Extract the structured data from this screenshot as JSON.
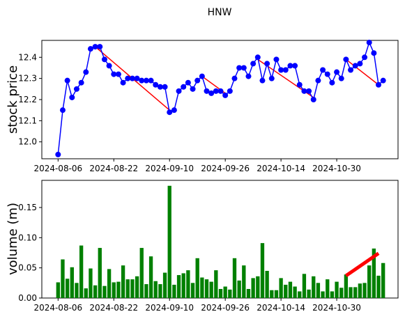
{
  "chart_data": [
    {
      "type": "line",
      "title": "HNW",
      "ylabel": "stock price",
      "ylabel_color": "#0000ff",
      "line_color": "#0000ff",
      "trend_color": "#ff0000",
      "x_tick_labels": [
        "2024-08-06",
        "2024-08-22",
        "2024-09-10",
        "2024-09-26",
        "2024-10-14",
        "2024-10-30"
      ],
      "y_ticks": [
        12.0,
        12.1,
        12.2,
        12.3,
        12.4
      ],
      "y_tick_labels": [
        "12.0",
        "12.1",
        "12.2",
        "12.3",
        "12.4"
      ],
      "ylim": [
        11.92,
        12.48
      ],
      "values": [
        11.94,
        12.15,
        12.29,
        12.21,
        12.25,
        12.28,
        12.33,
        12.44,
        12.45,
        12.45,
        12.39,
        12.36,
        12.32,
        12.32,
        12.28,
        12.3,
        12.3,
        12.3,
        12.29,
        12.29,
        12.29,
        12.27,
        12.26,
        12.26,
        12.14,
        12.15,
        12.24,
        12.26,
        12.28,
        12.25,
        12.29,
        12.31,
        12.24,
        12.23,
        12.24,
        12.24,
        12.22,
        12.24,
        12.3,
        12.35,
        12.35,
        12.31,
        12.37,
        12.4,
        12.29,
        12.37,
        12.3,
        12.39,
        12.34,
        12.34,
        12.36,
        12.36,
        12.27,
        12.24,
        12.24,
        12.2,
        12.29,
        12.34,
        12.32,
        12.28,
        12.33,
        12.3,
        12.39,
        12.34,
        12.36,
        12.37,
        12.4,
        12.47,
        12.42,
        12.27,
        12.29
      ],
      "trend_segments": [
        [
          8,
          12.45,
          24,
          12.15
        ],
        [
          31,
          12.31,
          36,
          12.23
        ],
        [
          43,
          12.39,
          55,
          12.21
        ],
        [
          62,
          12.39,
          69,
          12.27
        ]
      ]
    },
    {
      "type": "bar",
      "ylabel": "volume (m)",
      "ylabel_color": "#008000",
      "bar_color": "#008000",
      "trend_color": "#ff0000",
      "x_tick_labels": [
        "2024-08-06",
        "2024-08-22",
        "2024-09-10",
        "2024-09-26",
        "2024-10-14",
        "2024-10-30"
      ],
      "y_ticks": [
        0.0,
        0.05,
        0.1,
        0.15
      ],
      "y_tick_labels": [
        "0.00",
        "0.05",
        "0.10",
        "0.15"
      ],
      "ylim": [
        0,
        0.195
      ],
      "values": [
        0.026,
        0.064,
        0.032,
        0.051,
        0.025,
        0.087,
        0.016,
        0.049,
        0.021,
        0.083,
        0.02,
        0.048,
        0.026,
        0.027,
        0.054,
        0.031,
        0.031,
        0.036,
        0.083,
        0.023,
        0.069,
        0.028,
        0.023,
        0.042,
        0.186,
        0.022,
        0.038,
        0.041,
        0.046,
        0.025,
        0.066,
        0.034,
        0.031,
        0.027,
        0.046,
        0.015,
        0.019,
        0.014,
        0.066,
        0.029,
        0.054,
        0.015,
        0.033,
        0.036,
        0.091,
        0.045,
        0.013,
        0.013,
        0.033,
        0.022,
        0.027,
        0.019,
        0.011,
        0.04,
        0.014,
        0.036,
        0.025,
        0.011,
        0.031,
        0.011,
        0.027,
        0.017,
        0.039,
        0.018,
        0.018,
        0.024,
        0.025,
        0.054,
        0.082,
        0.037,
        0.058
      ],
      "trend_segments": [
        [
          62,
          0.037,
          69,
          0.074
        ]
      ]
    }
  ]
}
